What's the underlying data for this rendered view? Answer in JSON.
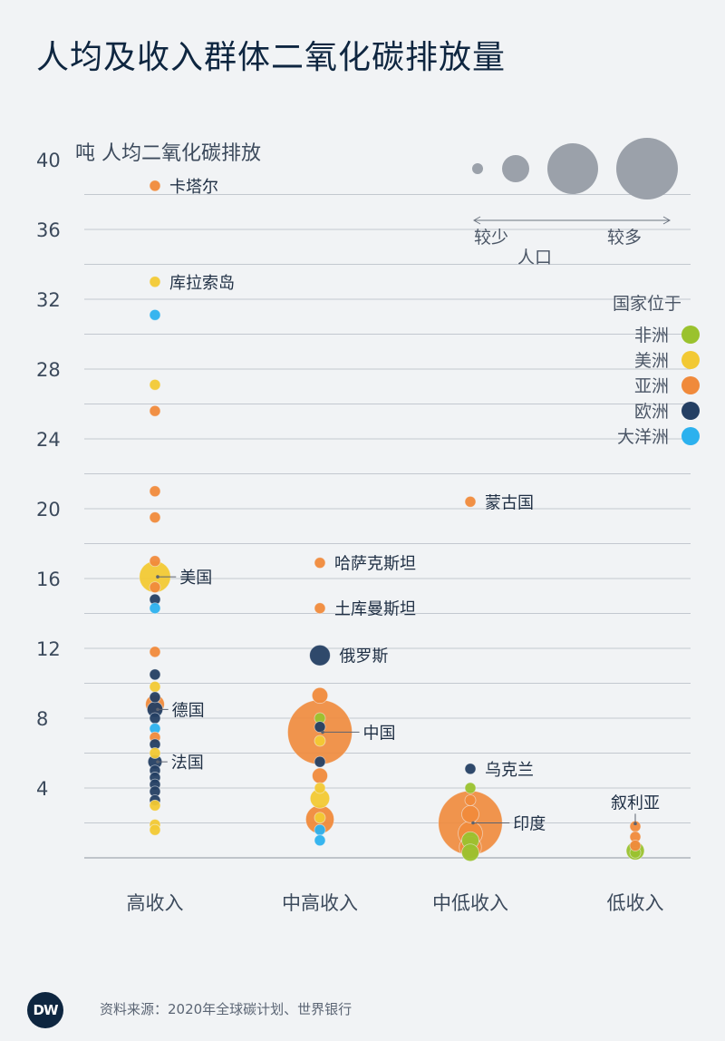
{
  "title": "人均及收入群体二氧化碳排放量",
  "source": "资料来源：2020年全球碳计划、世界银行",
  "logo": "DW",
  "chart_data": {
    "type": "scatter",
    "ylabel": "吨 人均二氧化碳排放",
    "y_ticks": [
      4,
      8,
      12,
      16,
      20,
      24,
      28,
      32,
      36,
      40
    ],
    "ylim": [
      0,
      40
    ],
    "grid": true,
    "categories": [
      "高收入",
      "中高收入",
      "中低收入",
      "低收入"
    ],
    "colors": {
      "非洲": "#9ac22e",
      "美洲": "#f2c934",
      "亚洲": "#f08a3b",
      "欧洲": "#243f63",
      "大洋洲": "#2cb1ee"
    },
    "legend": {
      "size_labels": [
        "较少",
        "较多"
      ],
      "size_title": "人口",
      "region_title": "国家位于",
      "regions": [
        "非洲",
        "美洲",
        "亚洲",
        "欧洲",
        "大洋洲"
      ]
    },
    "points": [
      {
        "cat": 0,
        "y": 38.5,
        "region": "亚洲",
        "pop": 0.4,
        "label": "卡塔尔"
      },
      {
        "cat": 0,
        "y": 33.0,
        "region": "美洲",
        "pop": 0.3,
        "label": "库拉索岛"
      },
      {
        "cat": 0,
        "y": 31.1,
        "region": "大洋洲",
        "pop": 0.3
      },
      {
        "cat": 0,
        "y": 27.1,
        "region": "美洲",
        "pop": 0.3
      },
      {
        "cat": 0,
        "y": 25.6,
        "region": "亚洲",
        "pop": 0.5
      },
      {
        "cat": 0,
        "y": 21.0,
        "region": "亚洲",
        "pop": 0.4
      },
      {
        "cat": 0,
        "y": 19.5,
        "region": "亚洲",
        "pop": 2
      },
      {
        "cat": 0,
        "y": 17.0,
        "region": "亚洲",
        "pop": 2
      },
      {
        "cat": 0,
        "y": 16.1,
        "region": "美洲",
        "pop": 330,
        "label": "美国"
      },
      {
        "cat": 0,
        "y": 15.5,
        "region": "亚洲",
        "pop": 5
      },
      {
        "cat": 0,
        "y": 14.8,
        "region": "欧洲",
        "pop": 2
      },
      {
        "cat": 0,
        "y": 14.3,
        "region": "大洋洲",
        "pop": 2
      },
      {
        "cat": 0,
        "y": 11.8,
        "region": "亚洲",
        "pop": 30
      },
      {
        "cat": 0,
        "y": 10.5,
        "region": "欧洲",
        "pop": 1
      },
      {
        "cat": 0,
        "y": 9.8,
        "region": "美洲",
        "pop": 2
      },
      {
        "cat": 0,
        "y": 9.2,
        "region": "欧洲",
        "pop": 10
      },
      {
        "cat": 0,
        "y": 8.8,
        "region": "亚洲",
        "pop": 120
      },
      {
        "cat": 0,
        "y": 8.5,
        "region": "欧洲",
        "pop": 83,
        "label": "德国"
      },
      {
        "cat": 0,
        "y": 8.0,
        "region": "欧洲",
        "pop": 17
      },
      {
        "cat": 0,
        "y": 7.4,
        "region": "大洋洲",
        "pop": 4
      },
      {
        "cat": 0,
        "y": 6.9,
        "region": "亚洲",
        "pop": 3
      },
      {
        "cat": 0,
        "y": 6.5,
        "region": "欧洲",
        "pop": 10
      },
      {
        "cat": 0,
        "y": 6.0,
        "region": "美洲",
        "pop": 1
      },
      {
        "cat": 0,
        "y": 5.5,
        "region": "欧洲",
        "pop": 67,
        "label": "法国"
      },
      {
        "cat": 0,
        "y": 5.0,
        "region": "欧洲",
        "pop": 10
      },
      {
        "cat": 0,
        "y": 4.6,
        "region": "欧洲",
        "pop": 9
      },
      {
        "cat": 0,
        "y": 4.2,
        "region": "欧洲",
        "pop": 20
      },
      {
        "cat": 0,
        "y": 3.8,
        "region": "欧洲",
        "pop": 2
      },
      {
        "cat": 0,
        "y": 3.3,
        "region": "欧洲",
        "pop": 3
      },
      {
        "cat": 0,
        "y": 3.0,
        "region": "美洲",
        "pop": 1
      },
      {
        "cat": 0,
        "y": 1.9,
        "region": "美洲",
        "pop": 1
      },
      {
        "cat": 0,
        "y": 1.6,
        "region": "美洲",
        "pop": 1
      },
      {
        "cat": 1,
        "y": 16.9,
        "region": "亚洲",
        "pop": 0.8,
        "label": "哈萨克斯坦"
      },
      {
        "cat": 1,
        "y": 14.3,
        "region": "亚洲",
        "pop": 0.5,
        "label": "土库曼斯坦"
      },
      {
        "cat": 1,
        "y": 11.6,
        "region": "欧洲",
        "pop": 144,
        "label": "俄罗斯"
      },
      {
        "cat": 1,
        "y": 9.3,
        "region": "亚洲",
        "pop": 84
      },
      {
        "cat": 1,
        "y": 8.0,
        "region": "非洲",
        "pop": 4
      },
      {
        "cat": 1,
        "y": 7.5,
        "region": "欧洲",
        "pop": 10
      },
      {
        "cat": 1,
        "y": 7.2,
        "region": "亚洲",
        "pop": 1400,
        "label": "中国"
      },
      {
        "cat": 1,
        "y": 6.7,
        "region": "美洲",
        "pop": 2
      },
      {
        "cat": 1,
        "y": 5.5,
        "region": "欧洲",
        "pop": 7
      },
      {
        "cat": 1,
        "y": 4.7,
        "region": "亚洲",
        "pop": 80
      },
      {
        "cat": 1,
        "y": 4.0,
        "region": "美洲",
        "pop": 40
      },
      {
        "cat": 1,
        "y": 3.4,
        "region": "美洲",
        "pop": 128
      },
      {
        "cat": 1,
        "y": 2.2,
        "region": "亚洲",
        "pop": 270
      },
      {
        "cat": 1,
        "y": 2.3,
        "region": "美洲",
        "pop": 3
      },
      {
        "cat": 1,
        "y": 1.6,
        "region": "大洋洲",
        "pop": 3
      },
      {
        "cat": 1,
        "y": 1.0,
        "region": "大洋洲",
        "pop": 3
      },
      {
        "cat": 2,
        "y": 20.4,
        "region": "亚洲",
        "pop": 3,
        "label": "蒙古国"
      },
      {
        "cat": 2,
        "y": 5.1,
        "region": "欧洲",
        "pop": 40,
        "label": "乌克兰"
      },
      {
        "cat": 2,
        "y": 4.0,
        "region": "非洲",
        "pop": 30
      },
      {
        "cat": 2,
        "y": 3.3,
        "region": "亚洲",
        "pop": 35
      },
      {
        "cat": 2,
        "y": 2.5,
        "region": "亚洲",
        "pop": 100
      },
      {
        "cat": 2,
        "y": 2.0,
        "region": "亚洲",
        "pop": 1380,
        "label": "印度"
      },
      {
        "cat": 2,
        "y": 1.4,
        "region": "亚洲",
        "pop": 200
      },
      {
        "cat": 2,
        "y": 1.0,
        "region": "非洲",
        "pop": 100
      },
      {
        "cat": 2,
        "y": 0.6,
        "region": "亚洲",
        "pop": 165
      },
      {
        "cat": 2,
        "y": 0.3,
        "region": "非洲",
        "pop": 100
      },
      {
        "cat": 3,
        "y": 1.8,
        "region": "亚洲",
        "pop": 17,
        "label": "叙利亚"
      },
      {
        "cat": 3,
        "y": 1.2,
        "region": "亚洲",
        "pop": 10
      },
      {
        "cat": 3,
        "y": 0.7,
        "region": "亚洲",
        "pop": 30
      },
      {
        "cat": 3,
        "y": 0.4,
        "region": "非洲",
        "pop": 110
      },
      {
        "cat": 3,
        "y": 0.3,
        "region": "非洲",
        "pop": 40
      }
    ]
  }
}
